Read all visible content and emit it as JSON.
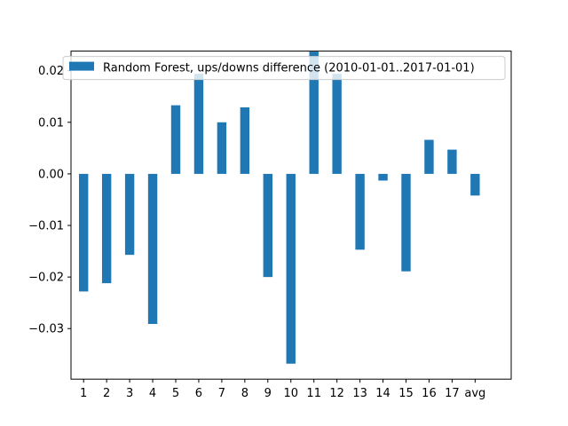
{
  "chart_data": {
    "type": "bar",
    "categories": [
      "1",
      "2",
      "3",
      "4",
      "5",
      "6",
      "7",
      "8",
      "9",
      "10",
      "11",
      "12",
      "13",
      "14",
      "15",
      "16",
      "17",
      "avg"
    ],
    "series": [
      {
        "name": "Random Forest, ups/downs difference (2010-01-01..2017-01-01)",
        "values": [
          -0.0228,
          -0.0212,
          -0.0157,
          -0.0291,
          0.0133,
          0.0194,
          0.01,
          0.0129,
          -0.02,
          -0.0368,
          0.0237,
          0.0194,
          -0.0147,
          -0.0013,
          -0.0189,
          0.0066,
          0.0047,
          -0.0042
        ]
      }
    ],
    "ylim": [
      -0.0398,
      0.0238
    ],
    "yticks": [
      0.02,
      0.01,
      0.0,
      -0.01,
      -0.02,
      -0.03
    ],
    "ytick_labels": [
      "0.02",
      "0.01",
      "0.00",
      "−0.01",
      "−0.02",
      "−0.03"
    ],
    "bar_color": "#1f77b4",
    "legend_position": "top-left",
    "grid": false,
    "title": "",
    "xlabel": "",
    "ylabel": ""
  }
}
